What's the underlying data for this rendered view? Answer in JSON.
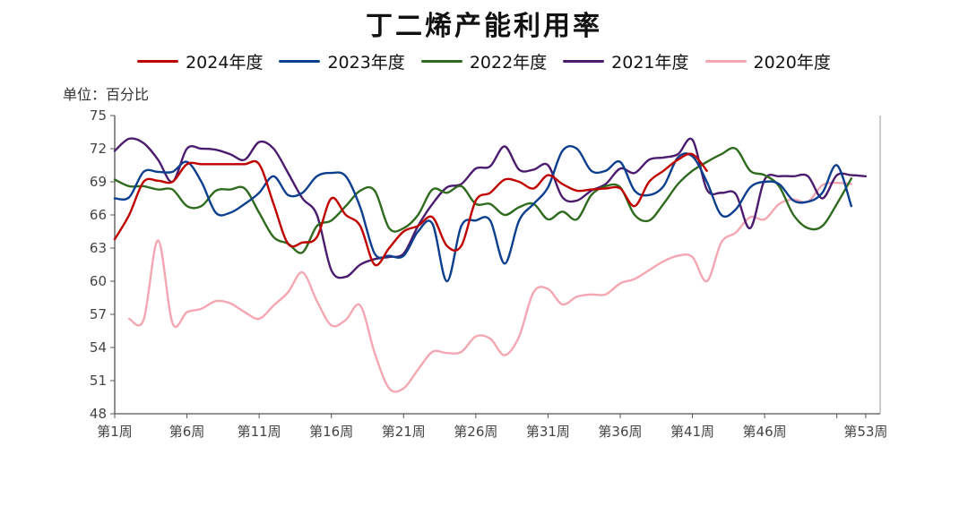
{
  "chart_data": {
    "type": "line",
    "title": "丁二烯产能利用率",
    "unit_label": "单位：百分比",
    "x_ticks": [
      "第1周",
      "第6周",
      "第11周",
      "第16周",
      "第21周",
      "第26周",
      "第31周",
      "第36周",
      "第41周",
      "第46周",
      "第53周"
    ],
    "x_tick_weeks": [
      1,
      6,
      11,
      16,
      21,
      26,
      31,
      36,
      41,
      46,
      53
    ],
    "x_extra_tick_week": 51,
    "xlim": [
      1,
      54
    ],
    "ylim": [
      48,
      75
    ],
    "y_ticks": [
      48,
      51,
      54,
      57,
      60,
      63,
      66,
      69,
      72,
      75
    ],
    "legend_position": "top",
    "series": [
      {
        "name": "2024年度",
        "color": "#c00000",
        "x": [
          1,
          2,
          3,
          4,
          5,
          6,
          7,
          8,
          9,
          10,
          11,
          12,
          13,
          14,
          15,
          16,
          17,
          18,
          19,
          20,
          21,
          22,
          23,
          24,
          25,
          26,
          27,
          28,
          29,
          30,
          31,
          32,
          33,
          34,
          35,
          36,
          37,
          38,
          39,
          40,
          41,
          42
        ],
        "values": [
          63.8,
          66.0,
          69.0,
          69.1,
          69.0,
          70.6,
          70.6,
          70.6,
          70.6,
          70.6,
          70.6,
          67.0,
          63.4,
          63.5,
          64.0,
          67.5,
          66.0,
          65.0,
          61.5,
          63.0,
          64.5,
          65.0,
          65.8,
          63.2,
          63.2,
          67.3,
          68.0,
          69.2,
          69.0,
          68.4,
          69.6,
          68.8,
          68.2,
          68.3,
          68.4,
          68.4,
          66.8,
          69.0,
          70.0,
          71.0,
          71.5,
          70.0
        ]
      },
      {
        "name": "2023年度",
        "color": "#0d3f8f",
        "x": [
          1,
          2,
          3,
          4,
          5,
          6,
          7,
          8,
          9,
          10,
          11,
          12,
          13,
          14,
          15,
          16,
          17,
          18,
          19,
          20,
          21,
          22,
          23,
          24,
          25,
          26,
          27,
          28,
          29,
          30,
          31,
          32,
          33,
          34,
          35,
          36,
          37,
          38,
          39,
          40,
          41,
          42,
          43,
          44,
          45,
          46,
          47,
          48,
          49,
          50,
          51,
          52
        ],
        "values": [
          67.5,
          67.6,
          69.9,
          69.9,
          69.9,
          70.8,
          69.0,
          66.2,
          66.2,
          67.0,
          68.0,
          69.5,
          67.8,
          68.0,
          69.5,
          69.8,
          69.5,
          66.7,
          62.5,
          62.3,
          62.3,
          64.5,
          65.2,
          60.0,
          65.0,
          65.5,
          65.5,
          61.6,
          65.5,
          67.0,
          68.5,
          71.8,
          72.0,
          70.0,
          70.0,
          70.8,
          68.2,
          67.8,
          68.6,
          71.2,
          71.3,
          69.0,
          66.0,
          66.5,
          68.5,
          69.0,
          68.8,
          67.3,
          67.2,
          68.0,
          70.5,
          66.8
        ]
      },
      {
        "name": "2022年度",
        "color": "#2f6b1e",
        "x": [
          1,
          2,
          3,
          4,
          5,
          6,
          7,
          8,
          9,
          10,
          11,
          12,
          13,
          14,
          15,
          16,
          17,
          18,
          19,
          20,
          21,
          22,
          23,
          24,
          25,
          26,
          27,
          28,
          29,
          30,
          31,
          32,
          33,
          34,
          35,
          36,
          37,
          38,
          39,
          40,
          41,
          42,
          43,
          44,
          45,
          46,
          47,
          48,
          49,
          50,
          51,
          52
        ],
        "values": [
          69.2,
          68.6,
          68.6,
          68.3,
          68.3,
          66.8,
          66.8,
          68.2,
          68.3,
          68.4,
          66.2,
          64.0,
          63.4,
          62.6,
          65.0,
          65.5,
          66.8,
          68.2,
          68.2,
          64.8,
          64.8,
          66.0,
          68.3,
          68.0,
          68.6,
          67.0,
          67.0,
          66.0,
          66.7,
          67.0,
          65.6,
          66.3,
          65.6,
          67.8,
          68.6,
          68.5,
          66.0,
          65.5,
          67.0,
          68.8,
          70.0,
          70.8,
          71.5,
          72.0,
          70.0,
          69.6,
          68.6,
          66.0,
          64.8,
          65.0,
          67.0,
          69.3
        ]
      },
      {
        "name": "2021年度",
        "color": "#4b1b6e",
        "x": [
          1,
          2,
          3,
          4,
          5,
          6,
          7,
          8,
          9,
          10,
          11,
          12,
          13,
          14,
          15,
          16,
          17,
          18,
          19,
          20,
          21,
          22,
          23,
          24,
          25,
          26,
          27,
          28,
          29,
          30,
          31,
          32,
          33,
          34,
          35,
          36,
          37,
          38,
          39,
          40,
          41,
          42,
          43,
          44,
          45,
          46,
          47,
          48,
          49,
          50,
          51,
          52,
          53
        ],
        "values": [
          71.8,
          72.9,
          72.5,
          71.0,
          69.0,
          72.0,
          72.0,
          71.9,
          71.5,
          71.0,
          72.6,
          72.0,
          69.8,
          67.5,
          66.0,
          61.0,
          60.4,
          61.5,
          62.0,
          62.2,
          62.5,
          65.0,
          67.0,
          68.5,
          68.8,
          70.2,
          70.4,
          72.2,
          70.1,
          70.1,
          70.5,
          67.6,
          67.3,
          68.2,
          68.8,
          70.2,
          69.8,
          71.0,
          71.2,
          71.5,
          72.8,
          68.3,
          68.0,
          67.9,
          64.8,
          69.2,
          69.5,
          69.5,
          69.5,
          67.5,
          69.6,
          69.6,
          69.5
        ]
      },
      {
        "name": "2020年度",
        "color": "#f4a7b3",
        "x": [
          2,
          3,
          4,
          5,
          6,
          7,
          8,
          9,
          10,
          11,
          12,
          13,
          14,
          15,
          16,
          17,
          18,
          19,
          20,
          21,
          22,
          23,
          24,
          25,
          26,
          27,
          28,
          29,
          30,
          31,
          32,
          33,
          34,
          35,
          36,
          37,
          38,
          39,
          40,
          41,
          42,
          43,
          44,
          45,
          46,
          47,
          48,
          49,
          50,
          51,
          52
        ],
        "values": [
          56.6,
          56.5,
          63.7,
          56.2,
          57.2,
          57.5,
          58.2,
          58.0,
          57.2,
          56.6,
          57.8,
          59.0,
          60.8,
          58.2,
          56.0,
          56.5,
          57.8,
          53.5,
          50.3,
          50.3,
          52.0,
          53.6,
          53.5,
          53.6,
          55.0,
          54.8,
          53.3,
          55.0,
          59.0,
          59.3,
          57.9,
          58.6,
          58.8,
          58.8,
          59.8,
          60.2,
          61.0,
          61.8,
          62.3,
          62.2,
          60.0,
          63.5,
          64.4,
          65.8,
          65.6,
          67.0,
          67.4,
          67.2,
          68.7,
          68.9,
          68.8
        ]
      }
    ]
  }
}
